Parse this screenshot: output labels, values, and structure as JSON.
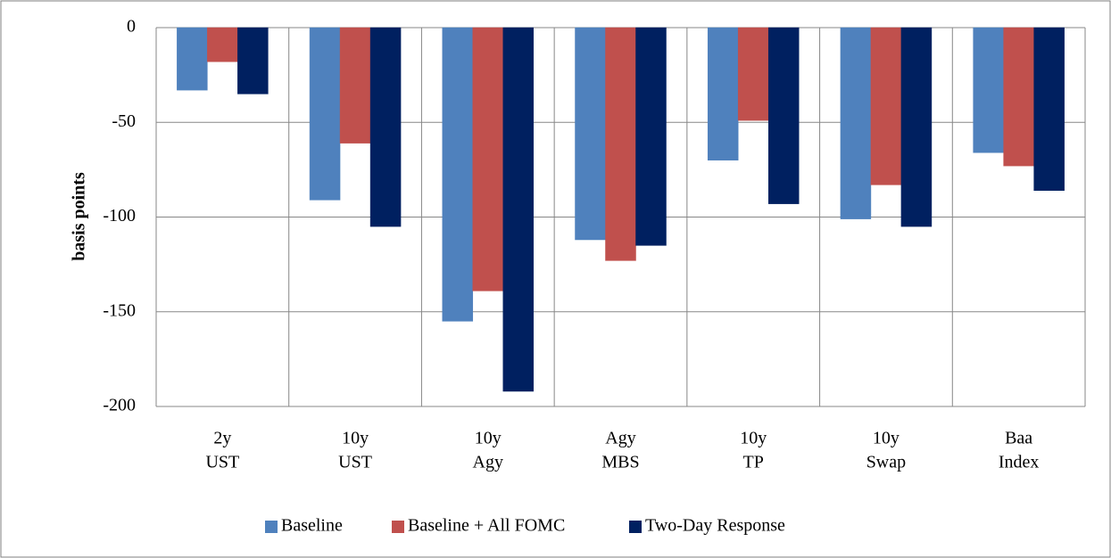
{
  "chart_data": {
    "type": "bar",
    "ylabel": "basis points",
    "categories": [
      [
        "2y",
        "UST"
      ],
      [
        "10y",
        "UST"
      ],
      [
        "10y",
        "Agy"
      ],
      [
        "Agy",
        "MBS"
      ],
      [
        "10y",
        "TP"
      ],
      [
        "10y",
        "Swap"
      ],
      [
        "Baa",
        "Index"
      ]
    ],
    "series": [
      {
        "name": "Baseline",
        "color": "#4f81bd",
        "values": [
          -33,
          -91,
          -155,
          -112,
          -70,
          -101,
          -66
        ]
      },
      {
        "name": "Baseline + All FOMC",
        "color": "#c0504d",
        "values": [
          -18,
          -61,
          -139,
          -123,
          -49,
          -83,
          -73
        ]
      },
      {
        "name": "Two-Day Response",
        "color": "#002060",
        "values": [
          -35,
          -105,
          -192,
          -115,
          -93,
          -105,
          -86
        ]
      }
    ],
    "ylim": [
      -200,
      0
    ],
    "yticks": [
      -200,
      -150,
      -100,
      -50,
      0
    ],
    "grid": true,
    "legend": "bottom"
  }
}
